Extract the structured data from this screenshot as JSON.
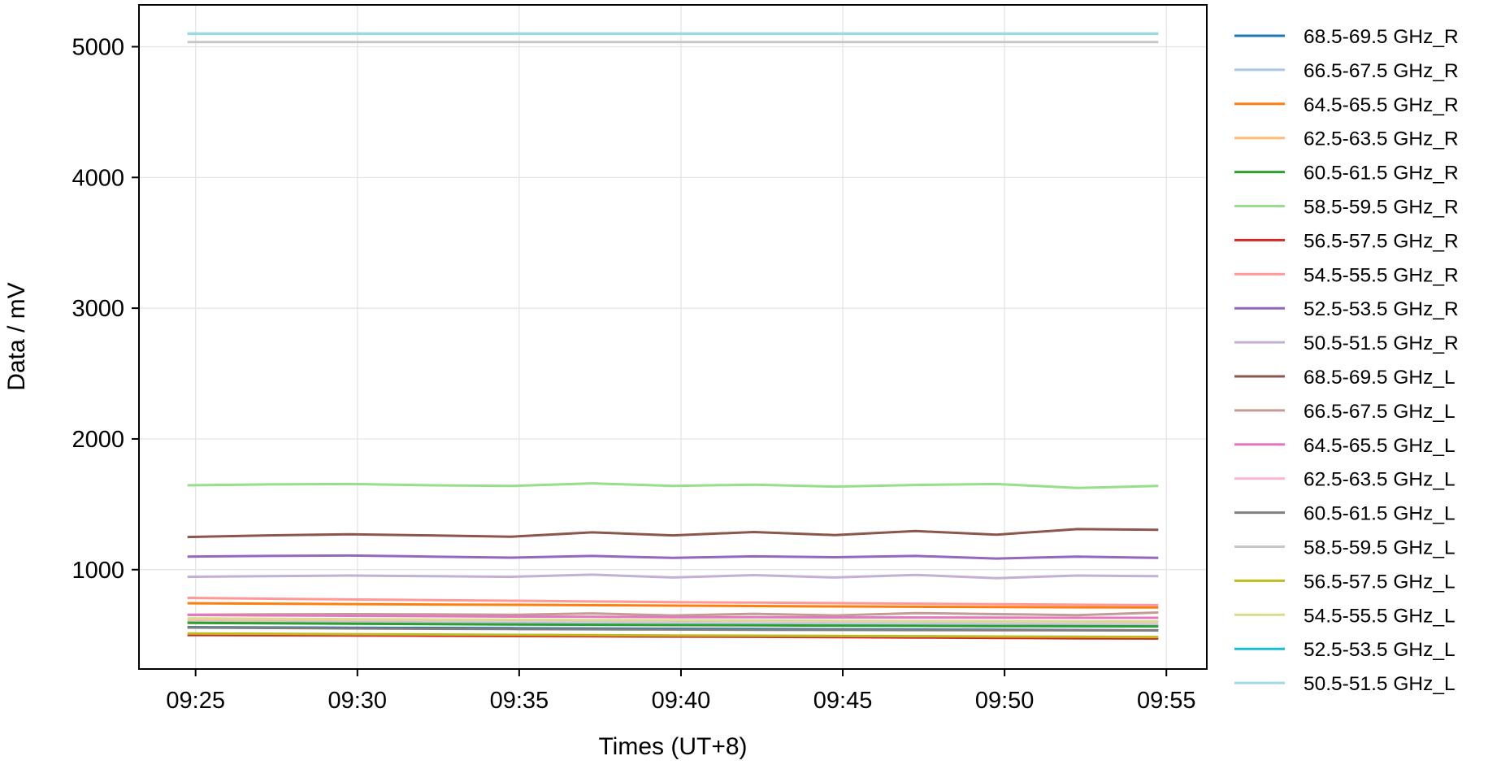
{
  "chart_data": {
    "type": "line",
    "xlabel": "Times (UT+8)",
    "ylabel": "Data / mV",
    "xlim": [
      "09:23:15",
      "09:56:15"
    ],
    "ylim": [
      240,
      5320
    ],
    "grid": true,
    "legend_position": "outside-right",
    "x_ticks": [
      "09:25",
      "09:30",
      "09:35",
      "09:40",
      "09:45",
      "09:50",
      "09:55"
    ],
    "y_ticks": [
      1000,
      2000,
      3000,
      4000,
      5000
    ],
    "x": [
      "09:24:45",
      "09:27:15",
      "09:29:45",
      "09:32:15",
      "09:34:45",
      "09:37:15",
      "09:39:45",
      "09:42:15",
      "09:44:45",
      "09:47:15",
      "09:49:45",
      "09:52:15",
      "09:54:45"
    ],
    "series": [
      {
        "name": "68.5-69.5 GHz_R",
        "color": "#1f77b4",
        "values": [
          560,
          558,
          556,
          554,
          552,
          550,
          548,
          546,
          544,
          542,
          540,
          538,
          536
        ]
      },
      {
        "name": "66.5-67.5 GHz_R",
        "color": "#aec7e8",
        "values": [
          600,
          598,
          596,
          594,
          592,
          590,
          588,
          586,
          584,
          582,
          580,
          578,
          576
        ]
      },
      {
        "name": "64.5-65.5 GHz_R",
        "color": "#ff7f0e",
        "values": [
          743,
          740,
          737,
          734,
          731,
          728,
          725,
          722,
          719,
          716,
          714,
          712,
          711
        ]
      },
      {
        "name": "62.5-63.5 GHz_R",
        "color": "#ffbb78",
        "values": [
          615,
          614,
          613,
          612,
          611,
          610,
          609,
          608,
          607,
          606,
          605,
          604,
          603
        ]
      },
      {
        "name": "60.5-61.5 GHz_R",
        "color": "#2ca02c",
        "values": [
          593,
          590,
          587,
          584,
          581,
          578,
          576,
          574,
          572,
          570,
          568,
          567,
          566
        ]
      },
      {
        "name": "58.5-59.5 GHz_R",
        "color": "#98df8a",
        "values": [
          1645,
          1652,
          1655,
          1645,
          1640,
          1660,
          1640,
          1650,
          1635,
          1648,
          1655,
          1625,
          1640
        ]
      },
      {
        "name": "56.5-57.5 GHz_R",
        "color": "#d62728",
        "values": [
          500,
          498,
          496,
          494,
          492,
          490,
          488,
          486,
          484,
          481,
          478,
          475,
          473
        ]
      },
      {
        "name": "54.5-55.5 GHz_R",
        "color": "#ff9896",
        "values": [
          784,
          778,
          772,
          767,
          762,
          757,
          752,
          748,
          744,
          740,
          736,
          732,
          728
        ]
      },
      {
        "name": "52.5-53.5 GHz_R",
        "color": "#9467bd",
        "values": [
          1100,
          1105,
          1108,
          1100,
          1092,
          1105,
          1090,
          1102,
          1095,
          1105,
          1085,
          1100,
          1090
        ]
      },
      {
        "name": "50.5-51.5 GHz_R",
        "color": "#c5b0d5",
        "values": [
          945,
          950,
          955,
          950,
          945,
          962,
          940,
          958,
          940,
          960,
          935,
          955,
          950
        ]
      },
      {
        "name": "68.5-69.5 GHz_L",
        "color": "#8c564b",
        "values": [
          1250,
          1262,
          1270,
          1262,
          1252,
          1285,
          1262,
          1288,
          1265,
          1295,
          1268,
          1310,
          1305
        ]
      },
      {
        "name": "66.5-67.5 GHz_L",
        "color": "#c49c94",
        "values": [
          655,
          658,
          660,
          658,
          655,
          665,
          650,
          662,
          650,
          668,
          660,
          652,
          672
        ]
      },
      {
        "name": "64.5-65.5 GHz_L",
        "color": "#e377c2",
        "values": [
          654,
          650,
          647,
          644,
          641,
          639,
          637,
          636,
          635,
          634,
          633,
          632,
          632
        ]
      },
      {
        "name": "62.5-63.5 GHz_L",
        "color": "#f7b6d2",
        "values": [
          620,
          618,
          616,
          614,
          612,
          610,
          608,
          606,
          604,
          602,
          600,
          598,
          596
        ]
      },
      {
        "name": "60.5-61.5 GHz_L",
        "color": "#7f7f7f",
        "values": [
          557,
          554,
          551,
          548,
          546,
          544,
          542,
          540,
          539,
          538,
          537,
          536,
          535
        ]
      },
      {
        "name": "58.5-59.5 GHz_L",
        "color": "#c7c7c7",
        "values": [
          5035,
          5035,
          5035,
          5035,
          5035,
          5035,
          5035,
          5035,
          5035,
          5035,
          5035,
          5035,
          5035
        ]
      },
      {
        "name": "56.5-57.5 GHz_L",
        "color": "#bcbd22",
        "values": [
          512,
          510,
          507,
          504,
          501,
          499,
          497,
          495,
          493,
          491,
          489,
          487,
          485
        ]
      },
      {
        "name": "54.5-55.5 GHz_L",
        "color": "#dbdb8d",
        "values": [
          628,
          625,
          622,
          619,
          617,
          615,
          613,
          611,
          609,
          607,
          605,
          604,
          603
        ]
      },
      {
        "name": "52.5-53.5 GHz_L",
        "color": "#17becf",
        "values": [
          5100,
          5100,
          5100,
          5100,
          5100,
          5100,
          5100,
          5100,
          5100,
          5100,
          5100,
          5100,
          5100
        ]
      },
      {
        "name": "50.5-51.5 GHz_L",
        "color": "#9edae5",
        "values": [
          5100,
          5100,
          5100,
          5100,
          5100,
          5100,
          5100,
          5100,
          5100,
          5100,
          5100,
          5100,
          5100
        ]
      }
    ]
  }
}
